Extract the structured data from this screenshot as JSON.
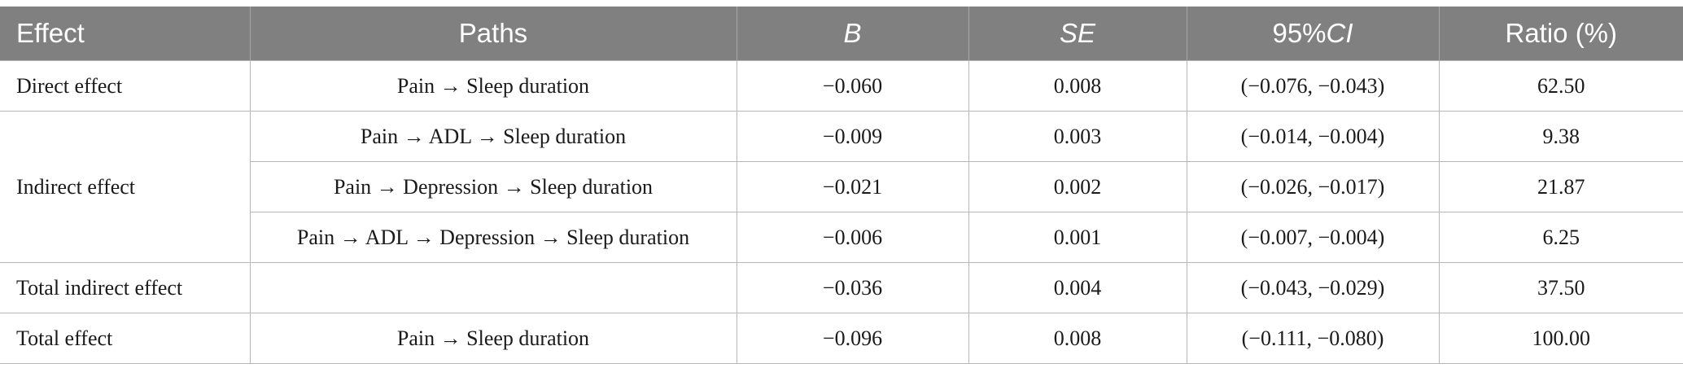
{
  "table": {
    "headers": {
      "effect": "Effect",
      "paths": "Paths",
      "b": "B",
      "se": "SE",
      "ci_prefix": "95%",
      "ci_suffix": "CI",
      "ratio": "Ratio (%)"
    },
    "rows": [
      {
        "effect": "Direct effect",
        "path": "Pain → Sleep duration",
        "b": "−0.060",
        "se": "0.008",
        "ci": "(−0.076, −0.043)",
        "ratio": "62.50"
      },
      {
        "effect": "Indirect effect",
        "path": "Pain → ADL → Sleep duration",
        "b": "−0.009",
        "se": "0.003",
        "ci": "(−0.014, −0.004)",
        "ratio": "9.38"
      },
      {
        "effect": "",
        "path": "Pain → Depression → Sleep duration",
        "b": "−0.021",
        "se": "0.002",
        "ci": "(−0.026, −0.017)",
        "ratio": "21.87"
      },
      {
        "effect": "",
        "path": "Pain → ADL → Depression → Sleep duration",
        "b": "−0.006",
        "se": "0.001",
        "ci": "(−0.007, −0.004)",
        "ratio": "6.25"
      },
      {
        "effect": "Total indirect effect",
        "path": "",
        "b": "−0.036",
        "se": "0.004",
        "ci": "(−0.043, −0.029)",
        "ratio": "37.50"
      },
      {
        "effect": "Total effect",
        "path": "Pain → Sleep duration",
        "b": "−0.096",
        "se": "0.008",
        "ci": "(−0.111, −0.080)",
        "ratio": "100.00"
      }
    ]
  }
}
